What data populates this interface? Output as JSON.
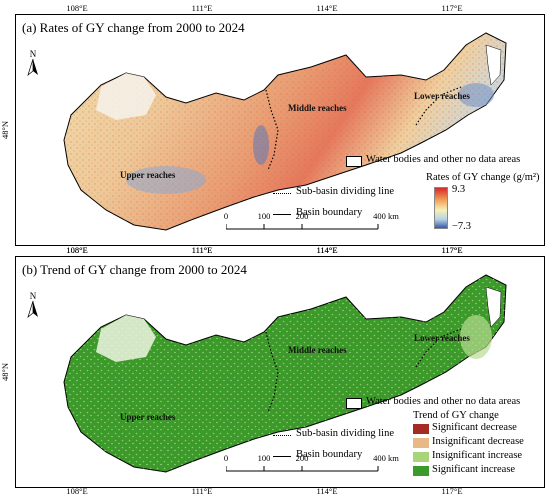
{
  "panel_a": {
    "title": "(a) Rates of GY change from 2000 to 2024",
    "top_ticks": [
      "108°E",
      "111°E",
      "114°E",
      "117°E"
    ],
    "bottom_ticks": [
      "108°E",
      "111°E",
      "114°E",
      "117°E"
    ],
    "left_tick": "48°N",
    "north": "N",
    "regions": {
      "upper": "Upper reaches",
      "middle": "Middle reaches",
      "lower": "Lower reaches"
    },
    "legend": {
      "water": "Water bodies and other no data areas",
      "subbasin": "Sub-basin dividing line",
      "boundary": "Basin boundary",
      "rate_title": "Rates of GY change (g/m²)",
      "rate_max": "9.3",
      "rate_min": "−7.3",
      "colors": {
        "high": "#d7282b",
        "mid": "#f5f0b8",
        "low": "#3858a8"
      }
    },
    "scale": {
      "labels": [
        "0",
        "100",
        "200",
        "400 km"
      ]
    }
  },
  "panel_b": {
    "title": "(b) Trend of GY change from 2000 to 2024",
    "top_ticks": [
      "108°E",
      "111°E",
      "114°E",
      "117°E"
    ],
    "bottom_ticks": [
      "108°E",
      "111°E",
      "114°E",
      "117°E"
    ],
    "left_tick": "48°N",
    "north": "N",
    "regions": {
      "upper": "Upper reaches",
      "middle": "Middle reaches",
      "lower": "Lower reaches"
    },
    "legend": {
      "water": "Water bodies and other no data areas",
      "subbasin": "Sub-basin dividing line",
      "boundary": "Basin boundary",
      "trend_title": "Trend of GY change",
      "classes": [
        {
          "label": "Significant decrease",
          "color": "#a52a23"
        },
        {
          "label": "Insignificant decrease",
          "color": "#e8b887"
        },
        {
          "label": "Insignificant increase",
          "color": "#a8d47a"
        },
        {
          "label": "Significant increase",
          "color": "#3c9a2a"
        }
      ]
    },
    "scale": {
      "labels": [
        "0",
        "100",
        "200",
        "400 km"
      ]
    }
  }
}
